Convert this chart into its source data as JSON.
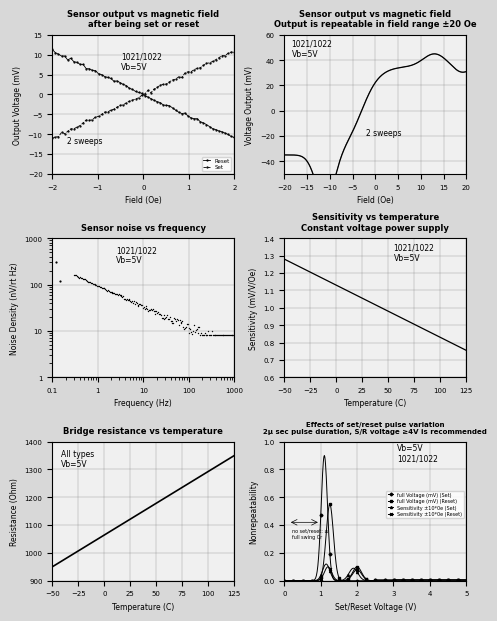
{
  "fig_width": 4.74,
  "fig_height": 6.13,
  "background_color": "#d8d8d8",
  "plot1": {
    "title": "Sensor output vs magnetic field\nafter being set or reset",
    "xlabel": "Field (Oe)",
    "ylabel": "Output Voltage (mV)",
    "xlim": [
      -2,
      2
    ],
    "ylim": [
      -20,
      15
    ],
    "annotation": "1021/1022\nVb=5V",
    "annotation2": "2 sweeps",
    "legend": [
      "Reset",
      "Set"
    ]
  },
  "plot2": {
    "title": "Sensor output vs magnetic field\nOutput is repeatable in field range ±20 Oe",
    "xlabel": "Field (Oe)",
    "ylabel": "Voltage Output (mV)",
    "xlim": [
      -20,
      20
    ],
    "ylim": [
      -50,
      60
    ],
    "annotation": "1021/1022\nVb=5V",
    "annotation2": "2 sweeps"
  },
  "plot3": {
    "title": "Sensor noise vs frequency",
    "xlabel": "Frequency (Hz)",
    "ylabel": "Noise Density (nV/rt Hz)",
    "annotation": "1021/1022\nVb=5V"
  },
  "plot4": {
    "title": "Sensitivity vs temperature\nConstant voltage power supply",
    "xlabel": "Temperature (C)",
    "ylabel": "Sensitivity (mV/V/Oe)",
    "xlim": [
      -50,
      125
    ],
    "ylim": [
      0.6,
      1.4
    ],
    "annotation": "1021/1022\nVb=5V"
  },
  "plot5": {
    "title": "Bridge resistance vs temperature",
    "xlabel": "Temperature (C)",
    "ylabel": "Resistance (Ohm)",
    "xlim": [
      -50,
      125
    ],
    "ylim": [
      900,
      1400
    ],
    "annotation": "All types\nVb=5V"
  },
  "plot6": {
    "title": "Effects of set/reset pulse variation\n2μ sec pulse duration, S/R voltage ≥4V is recommended",
    "xlabel": "Set/Reset Voltage (V)",
    "ylabel": "Nonrepeatability",
    "xlim": [
      0,
      5
    ],
    "ylim": [
      0,
      1.0
    ],
    "annotation": "Vb=5V\n1021/1022",
    "legend": [
      "full Voltage (mV) (Set)",
      "full Voltage (mV) (Reset)",
      "Sensitivity ±10*0e (Set)",
      "Sensitivity ±10*0e (Reset)"
    ]
  }
}
